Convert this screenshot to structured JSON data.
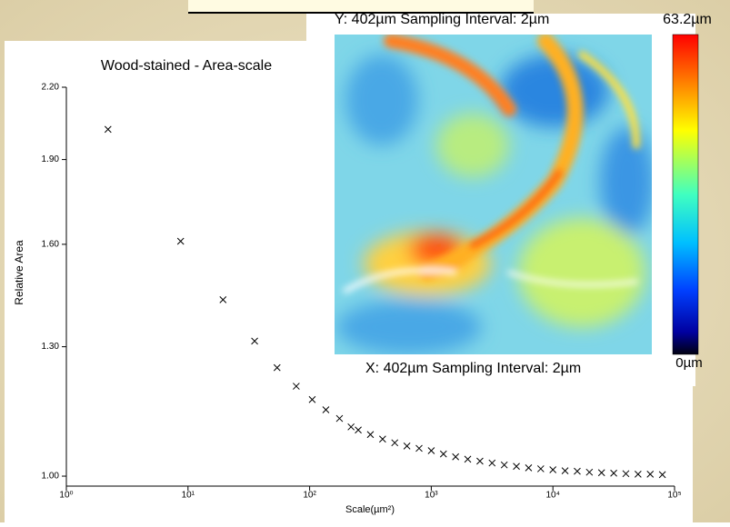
{
  "chart_data": {
    "type": "scatter",
    "title": "Wood-stained - Area-scale",
    "xlabel": "Scale(µm²)",
    "ylabel": "Relative Area",
    "xscale": "log",
    "yscale": "log",
    "xlim": [
      1,
      100000
    ],
    "xticks": [
      {
        "value": 1,
        "label": "10⁰"
      },
      {
        "value": 10,
        "label": "10¹"
      },
      {
        "value": 100,
        "label": "10²"
      },
      {
        "value": 1000,
        "label": "10³"
      },
      {
        "value": 10000,
        "label": "10⁴"
      },
      {
        "value": 100000,
        "label": "10⁵"
      }
    ],
    "ylim": [
      0.98,
      2.2
    ],
    "yticks": [
      {
        "value": 1,
        "label": "1.00"
      },
      {
        "value": 1.3,
        "label": "1.30"
      },
      {
        "value": 1.6,
        "label": "1.60"
      },
      {
        "value": 1.9,
        "label": "1.90"
      },
      {
        "value": 2.2,
        "label": "2.20"
      }
    ],
    "marker": "x",
    "color": "#000000",
    "x": [
      2.2,
      8.7,
      19.4,
      35.3,
      54,
      77.6,
      105,
      136,
      176,
      219,
      251,
      316,
      398,
      501,
      631,
      794,
      1000,
      1259,
      1585,
      1995,
      2512,
      3162,
      3981,
      5012,
      6310,
      7943,
      10000,
      12589,
      15849,
      19953,
      25119,
      31623,
      39811,
      50119,
      63096,
      79433
    ],
    "values": [
      2.02,
      1.61,
      1.43,
      1.315,
      1.246,
      1.2,
      1.168,
      1.144,
      1.124,
      1.105,
      1.098,
      1.088,
      1.078,
      1.07,
      1.063,
      1.058,
      1.053,
      1.046,
      1.04,
      1.035,
      1.031,
      1.027,
      1.023,
      1.02,
      1.017,
      1.015,
      1.013,
      1.011,
      1.01,
      1.008,
      1.007,
      1.006,
      1.005,
      1.004,
      1.004,
      1.003
    ]
  },
  "heatmap": {
    "y_caption": "Y: 402µm Sampling Interval: 2µm",
    "x_caption": "X: 402µm Sampling Interval: 2µm",
    "scale_max": "63.2µm",
    "scale_min": "0µm"
  }
}
